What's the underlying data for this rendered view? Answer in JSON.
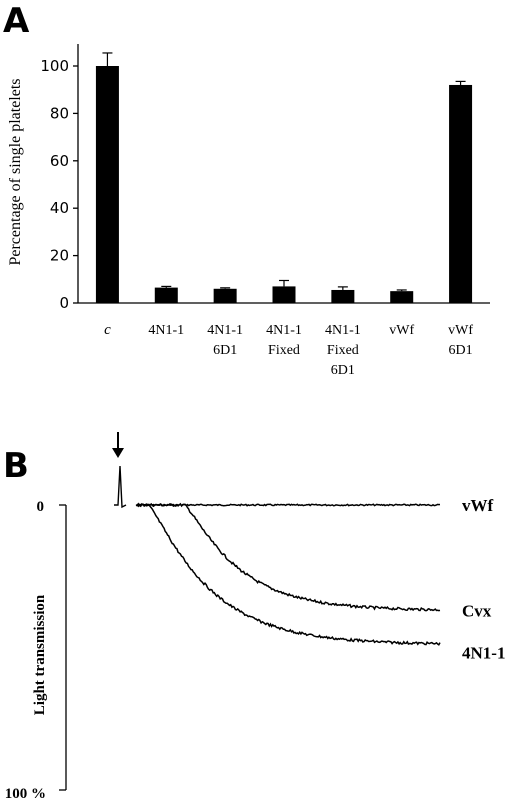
{
  "chart_data": [
    {
      "panel": "A",
      "type": "bar",
      "ylabel": "Percentage of single platelets",
      "ylim": [
        0,
        100
      ],
      "yticks": [
        0,
        20,
        40,
        60,
        80,
        100
      ],
      "categories": [
        [
          "c"
        ],
        [
          "4N1-1"
        ],
        [
          "4N1-1",
          "6D1"
        ],
        [
          "4N1-1",
          "Fixed"
        ],
        [
          "4N1-1",
          "Fixed",
          "6D1"
        ],
        [
          "vWf"
        ],
        [
          "vWf",
          "6D1"
        ]
      ],
      "values": [
        100,
        6.5,
        6,
        7,
        5.5,
        5,
        92
      ],
      "errors": [
        5.5,
        0.5,
        0.4,
        2.5,
        1.3,
        0.5,
        1.5
      ],
      "bar_color": "#000000"
    },
    {
      "panel": "B",
      "type": "line",
      "ylabel": "Light transmission",
      "yticks": [
        "0",
        "100 %"
      ],
      "annotation": "agonist-arrow",
      "series": [
        {
          "name": "vWf",
          "onset": 0,
          "plateau": 0
        },
        {
          "name": "Cvx",
          "onset": 0.16,
          "plateau": 37
        },
        {
          "name": "4N1-1",
          "onset": 0.04,
          "plateau": 49
        }
      ]
    }
  ]
}
